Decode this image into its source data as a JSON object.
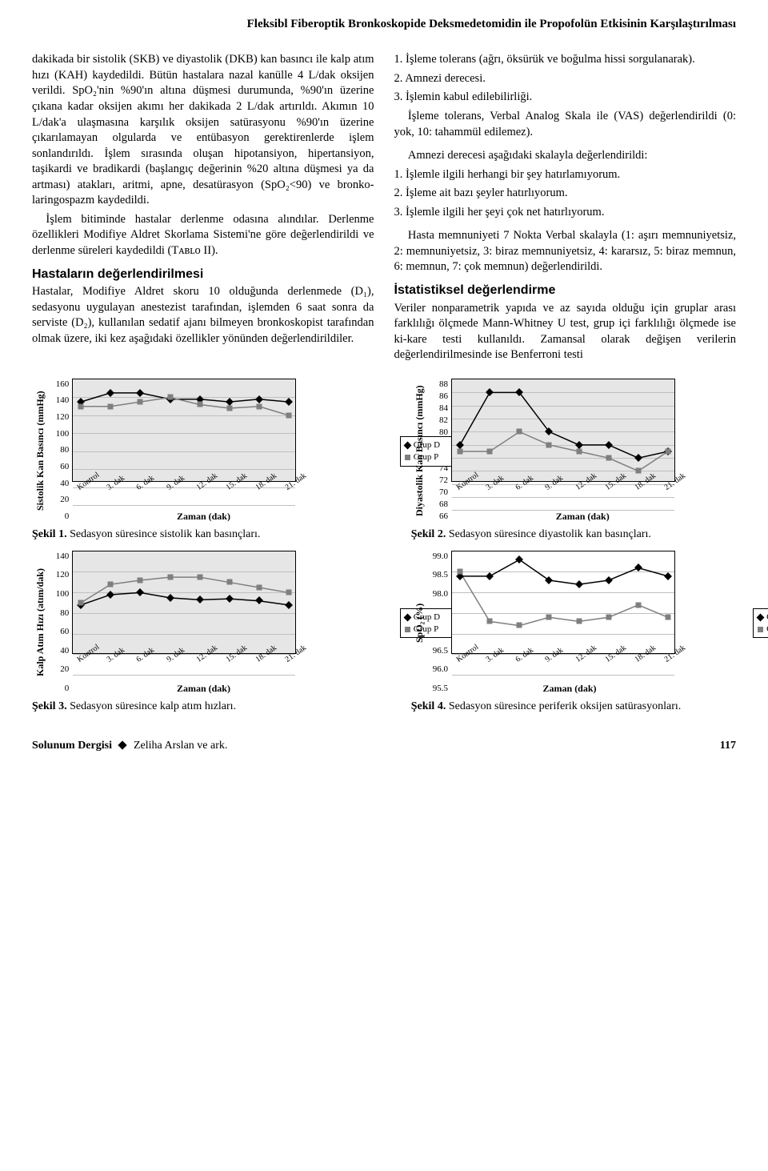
{
  "header": "Fleksibl Fiberoptik Bronkoskopide Deksmedetomidin ile Propofolün Etkisinin Karşılaştırılması",
  "left_column": {
    "p1": "dakikada bir sistolik (SKB) ve diyastolik (DKB) kan basıncı ile kalp atım hızı (KAH) kaydedildi. Bütün hastalara nazal kanülle 4 L/dak oksijen verildi. SpO₂'nin %90'ın altına düşmesi durumunda, %90'ın üzerine çıkana kadar oksijen akımı her dakikada 2 L/dak artırıldı. Akımın 10 L/dak'a ulaşmasına karşılık oksijen satürasyonu %90'ın üzerine çıkarılamayan olgularda ve entübasyon gerektirenlerde işlem sonlandırıldı. İşlem sırasında oluşan hipotansiyon, hipertansiyon, taşikardi ve bradikardi (başlangıç değerinin %20 altına düşmesi ya da artması) atakları, aritmi, apne, desatürasyon (SpO₂<90) ve bronko-laringospazm kaydedildi.",
    "p2": "İşlem bitiminde hastalar derlenme odasına alındılar. Derlenme özellikleri Modifiye Aldret Skorlama Sistemi'ne göre değerlendirildi ve derlenme süreleri kaydedildi (Tᴀʙʟᴏ II).",
    "h1": "Hastaların değerlendirilmesi",
    "p3": "Hastalar, Modifiye Aldret skoru 10 olduğunda derlenmede (D₁), sedasyonu uygulayan anestezist tarafından, işlemden 6 saat sonra da serviste (D₂), kullanılan sedatif ajanı bilmeyen bronkoskopist tarafından olmak üzere, iki kez aşağıdaki özellikler yönünden değerlendirildiler."
  },
  "right_column": {
    "l1": "1. İşleme tolerans (ağrı, öksürük ve boğulma hissi sorgulanarak).",
    "l2": "2. Amnezi derecesi.",
    "l3": "3. İşlemin kabul edilebilirliği.",
    "p1": "İşleme tolerans, Verbal Analog Skala ile (VAS) değerlendirildi (0: yok, 10: tahammül edilemez).",
    "p2": "Amnezi derecesi aşağıdaki skalayla değerlendirildi:",
    "a1": "1. İşlemle ilgili herhangi bir şey hatırlamıyorum.",
    "a2": "2. İşleme ait bazı şeyler hatırlıyorum.",
    "a3": "3. İşlemle ilgili her şeyi çok net hatırlıyorum.",
    "p3": "Hasta memnuniyeti 7 Nokta Verbal skalayla (1: aşırı memnuniyetsiz, 2: memnuniyetsiz, 3: biraz memnuniyetsiz, 4: kararsız, 5: biraz memnun, 6: memnun, 7: çok memnun) değerlendirildi.",
    "h1": "İstatistiksel değerlendirme",
    "p4": "Veriler nonparametrik yapıda ve az sayıda olduğu için gruplar arası farklılığı ölçmede Mann-Whitney U test, grup içi farklılığı ölçmede ise ki-kare testi kullanıldı. Zamansal olarak değişen verilerin değerlendirilmesinde ise Benferroni testi"
  },
  "x_categories": [
    "Kontrol",
    "3. dak",
    "6. dak",
    "9. dak",
    "12. dak",
    "15. dak",
    "18. dak",
    "21. dak"
  ],
  "xlabel": "Zaman (dak)",
  "legend": {
    "d": "Grup D",
    "p": "Grup P"
  },
  "colors": {
    "d": "#000000",
    "p": "#7f7f7f",
    "plot_bg": "#e6e6e6",
    "grid": "#bfbfbf"
  },
  "chart1": {
    "ylabel": "Sistolik Kan Basıncı (mmHg)",
    "ymin": 0,
    "ymax": 160,
    "ystep": 20,
    "bg": "grey",
    "d": [
      135,
      145,
      145,
      138,
      138,
      135,
      138,
      135
    ],
    "p": [
      130,
      130,
      135,
      140,
      132,
      128,
      130,
      120
    ],
    "caption_b": "Şekil 1.",
    "caption_t": "Sedasyon süresince sistolik kan basınçları."
  },
  "chart2": {
    "ylabel": "Diyastolik Kan Basıncı (mmHg)",
    "ymin": 66,
    "ymax": 88,
    "ystep": 2,
    "bg": "grey",
    "d": [
      78,
      86,
      86,
      80,
      78,
      78,
      76,
      77
    ],
    "p": [
      77,
      77,
      80,
      78,
      77,
      76,
      74,
      77
    ],
    "caption_b": "Şekil 2.",
    "caption_t": "Sedasyon süresince diyastolik kan basınçları."
  },
  "chart3": {
    "ylabel": "Kalp Atım Hızı (atım/dak)",
    "ymin": 0,
    "ymax": 140,
    "ystep": 20,
    "bg": "grey",
    "d": [
      88,
      98,
      100,
      95,
      93,
      94,
      92,
      88
    ],
    "p": [
      90,
      108,
      112,
      115,
      115,
      110,
      105,
      100
    ],
    "caption_b": "Şekil 3.",
    "caption_t": "Sedasyon süresince kalp atım hızları."
  },
  "chart4": {
    "ylabel": "SpO₂ (%)",
    "ymin": 95.5,
    "ymax": 99,
    "ystep": 0.5,
    "bg": "white",
    "d": [
      98.4,
      98.4,
      98.8,
      98.3,
      98.2,
      98.3,
      98.6,
      98.4
    ],
    "p": [
      98.5,
      97.3,
      97.2,
      97.4,
      97.3,
      97.4,
      97.7,
      97.4
    ],
    "caption_b": "Şekil 4.",
    "caption_t": "Sedasyon süresince periferik oksijen satürasyonları."
  },
  "footer": {
    "journal": "Solunum Dergisi",
    "author": "Zeliha Arslan ve ark.",
    "page": "117"
  }
}
